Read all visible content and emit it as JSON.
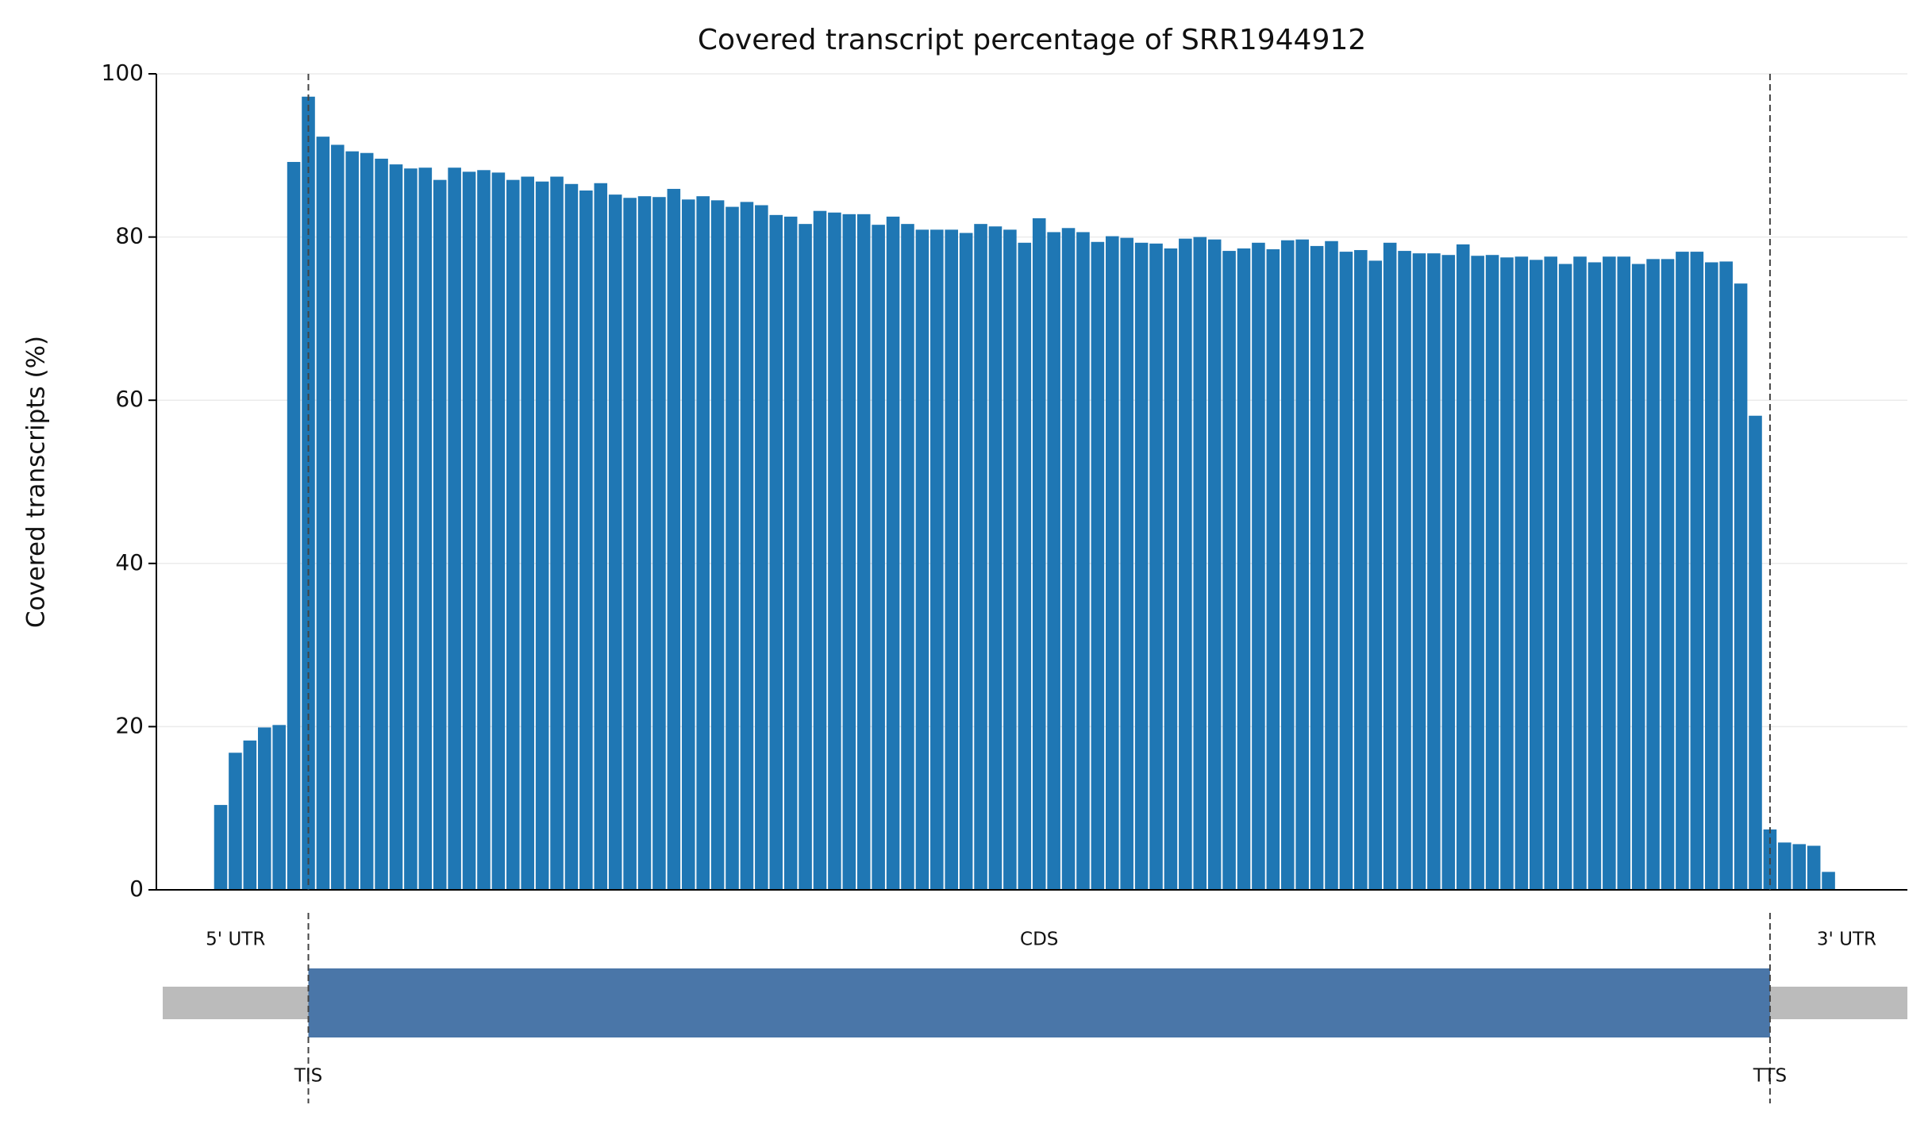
{
  "chart_data": {
    "type": "bar",
    "title": "Covered transcript percentage of SRR1944912",
    "ylabel": "Covered transcripts (%)",
    "x": [
      -6,
      -5,
      -4,
      -3,
      -2,
      -1,
      0,
      1,
      2,
      3,
      4,
      5,
      6,
      7,
      8,
      9,
      10,
      11,
      12,
      13,
      14,
      15,
      16,
      17,
      18,
      19,
      20,
      21,
      22,
      23,
      24,
      25,
      26,
      27,
      28,
      29,
      30,
      31,
      32,
      33,
      34,
      35,
      36,
      37,
      38,
      39,
      40,
      41,
      42,
      43,
      44,
      45,
      46,
      47,
      48,
      49,
      50,
      51,
      52,
      53,
      54,
      55,
      56,
      57,
      58,
      59,
      60,
      61,
      62,
      63,
      64,
      65,
      66,
      67,
      68,
      69,
      70,
      71,
      72,
      73,
      74,
      75,
      76,
      77,
      78,
      79,
      80,
      81,
      82,
      83,
      84,
      85,
      86,
      87,
      88,
      89,
      90,
      91,
      92,
      93,
      94,
      95,
      96,
      97,
      98,
      99,
      100,
      101,
      102,
      103,
      104
    ],
    "values": [
      10.4,
      16.8,
      18.3,
      19.9,
      20.2,
      89.2,
      97.2,
      92.3,
      91.3,
      90.5,
      90.3,
      89.6,
      88.9,
      88.4,
      88.5,
      87.0,
      88.5,
      88.0,
      88.2,
      87.9,
      87.0,
      87.4,
      86.8,
      87.4,
      86.5,
      85.7,
      86.6,
      85.2,
      84.8,
      85.0,
      84.9,
      85.9,
      84.6,
      85.0,
      84.5,
      83.7,
      84.3,
      83.9,
      82.7,
      82.5,
      81.6,
      83.2,
      83.0,
      82.8,
      82.8,
      81.5,
      82.5,
      81.6,
      80.9,
      80.9,
      80.9,
      80.5,
      81.6,
      81.3,
      80.9,
      79.3,
      82.3,
      80.6,
      81.1,
      80.6,
      79.4,
      80.1,
      79.9,
      79.3,
      79.2,
      78.6,
      79.8,
      80.0,
      79.7,
      78.3,
      78.6,
      79.3,
      78.5,
      79.6,
      79.7,
      78.9,
      79.5,
      78.2,
      78.4,
      77.1,
      79.3,
      78.3,
      78.0,
      78.0,
      77.8,
      79.1,
      77.7,
      77.8,
      77.5,
      77.6,
      77.2,
      77.6,
      76.7,
      77.6,
      76.9,
      77.6,
      77.6,
      76.7,
      77.3,
      77.3,
      78.2,
      78.2,
      76.9,
      77.0,
      74.3,
      58.1,
      7.4,
      5.8,
      5.6,
      5.4,
      2.2
    ],
    "color": "#1f77b4",
    "xlim": [
      -10.4,
      109.4
    ],
    "ylim": [
      0,
      100
    ],
    "yticks": [
      0,
      20,
      40,
      60,
      80,
      100
    ],
    "grid": true,
    "markers": [
      {
        "x": 0,
        "label": "TIS"
      },
      {
        "x": 100,
        "label": "TTS"
      }
    ],
    "regions": {
      "utr5": "5' UTR",
      "cds": "CDS",
      "utr3": "3' UTR",
      "utr_color": "#bbbbbb",
      "cds_color": "#4a76a8"
    }
  }
}
